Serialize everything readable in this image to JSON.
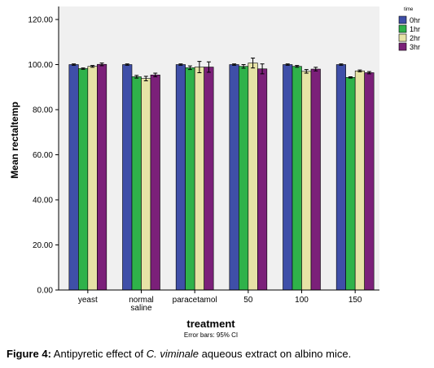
{
  "chart_data": {
    "type": "bar",
    "xlabel": "treatment",
    "ylabel": "Mean rectaltemp",
    "ylim": [
      0,
      120
    ],
    "yticks": [
      "0.00",
      "20.00",
      "40.00",
      "60.00",
      "80.00",
      "100.00",
      "120.00"
    ],
    "ytick_values": [
      0,
      20,
      40,
      60,
      80,
      100,
      120
    ],
    "categories": [
      "yeast",
      "normal saline",
      "paracetamol",
      "50",
      "100",
      "150"
    ],
    "category_lines": [
      [
        "yeast"
      ],
      [
        "normal",
        "saline"
      ],
      [
        "paracetamol"
      ],
      [
        "50"
      ],
      [
        "100"
      ],
      [
        "150"
      ]
    ],
    "legend_title": "time",
    "legend_position": "top-right",
    "grid": false,
    "error_bar_note": "Error bars: 95% CI",
    "series": [
      {
        "name": "0hr",
        "color": "#3f4fa8",
        "values": [
          100.0,
          100.0,
          100.0,
          100.0,
          100.0,
          100.0
        ],
        "errors": [
          0.3,
          0.3,
          0.3,
          0.3,
          0.3,
          0.3
        ]
      },
      {
        "name": "1hr",
        "color": "#2fb24a",
        "values": [
          98.2,
          94.6,
          98.6,
          99.2,
          99.2,
          94.3
        ],
        "errors": [
          0.3,
          0.6,
          0.8,
          0.8,
          0.4,
          0.3
        ]
      },
      {
        "name": "2hr",
        "color": "#e6e3a6",
        "values": [
          99.2,
          93.8,
          98.9,
          100.7,
          97.0,
          97.2
        ],
        "errors": [
          0.4,
          1.0,
          2.5,
          2.2,
          0.8,
          0.4
        ]
      },
      {
        "name": "3hr",
        "color": "#7b2079",
        "values": [
          100.1,
          95.4,
          98.9,
          98.1,
          98.0,
          96.4
        ],
        "errors": [
          0.6,
          0.8,
          2.3,
          2.2,
          0.8,
          0.5
        ]
      }
    ]
  },
  "caption": {
    "label": "Figure 4:",
    "text_before": " Antipyretic effect of ",
    "species": "C. viminale",
    "text_after": " aqueous extract on albino mice."
  }
}
